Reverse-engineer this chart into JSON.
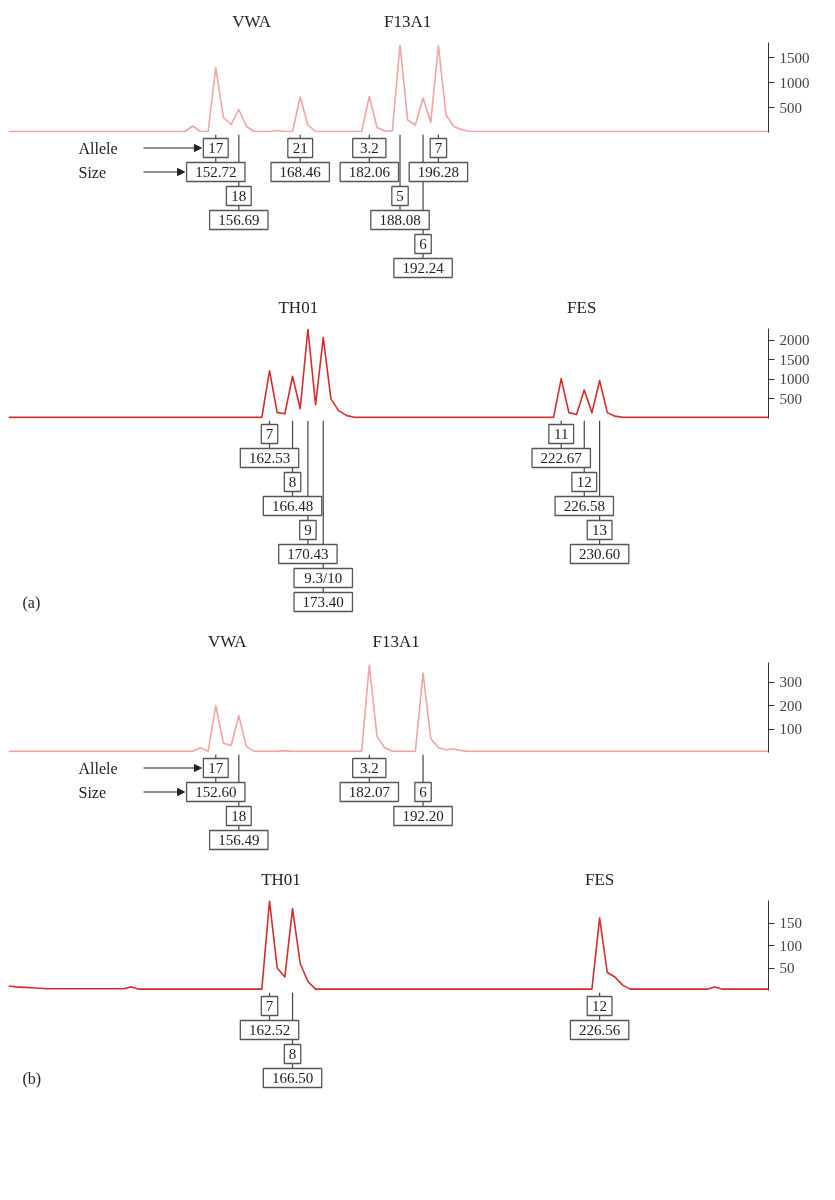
{
  "chart_data": [
    {
      "type": "line",
      "ylim": [
        0,
        1800
      ],
      "yticks": [
        500,
        1000,
        1500
      ],
      "tick_labels": "y",
      "categories": [
        null,
        null,
        null,
        null,
        null,
        null,
        null,
        null,
        null,
        null,
        null,
        null,
        null,
        null,
        null,
        null,
        null,
        null,
        null,
        null,
        null,
        null,
        null,
        null,
        null,
        null,
        null,
        null,
        null,
        null,
        null,
        null,
        null,
        null,
        null,
        null,
        null,
        null,
        null,
        null,
        null,
        null,
        null,
        null,
        null,
        null,
        null,
        null,
        null,
        null,
        null,
        null,
        null,
        null,
        null,
        null,
        null,
        null,
        null,
        null,
        null,
        null,
        null,
        null,
        null,
        null,
        null,
        null,
        null,
        null,
        null,
        null,
        null,
        null,
        null,
        null,
        null,
        null,
        null,
        null,
        null,
        null,
        null,
        null,
        null,
        null,
        null,
        null,
        null,
        null,
        null,
        null,
        null,
        null,
        null,
        null,
        null,
        null,
        null,
        null
      ],
      "series": [
        {
          "color": "#f2a3a3",
          "values": [
            20,
            20,
            20,
            20,
            20,
            20,
            20,
            20,
            20,
            20,
            20,
            20,
            20,
            20,
            20,
            20,
            20,
            20,
            20,
            20,
            20,
            20,
            20,
            20,
            130,
            20,
            20,
            1300,
            300,
            160,
            460,
            120,
            20,
            20,
            20,
            40,
            20,
            20,
            710,
            150,
            20,
            20,
            20,
            20,
            20,
            20,
            20,
            720,
            100,
            30,
            30,
            1750,
            250,
            150,
            690,
            200,
            1730,
            350,
            120,
            60,
            20,
            20,
            20,
            20,
            20,
            20,
            20,
            20,
            20,
            20,
            20,
            20,
            20,
            20,
            20,
            20,
            20,
            20,
            20,
            20,
            20,
            20,
            20,
            20,
            20,
            20,
            20,
            20,
            20,
            20,
            20,
            20,
            20,
            20,
            20,
            20,
            20,
            20,
            20,
            20
          ]
        }
      ],
      "annotations": [
        "VWA",
        "F13A1",
        "Allele",
        "Size",
        "17",
        "152.72",
        "18",
        "156.69",
        "21",
        "168.46",
        "3.2",
        "182.06",
        "5",
        "188.08",
        "6",
        "192.24",
        "7",
        "196.28"
      ]
    },
    {
      "type": "line",
      "ylim": [
        0,
        2300
      ],
      "yticks": [
        500,
        1000,
        1500,
        2000
      ],
      "tick_labels": "y",
      "categories": [
        null,
        null,
        null,
        null,
        null,
        null,
        null,
        null,
        null,
        null,
        null,
        null,
        null,
        null,
        null,
        null,
        null,
        null,
        null,
        null,
        null,
        null,
        null,
        null,
        null,
        null,
        null,
        null,
        null,
        null,
        null,
        null,
        null,
        null,
        null,
        null,
        null,
        null,
        null,
        null,
        null,
        null,
        null,
        null,
        null,
        null,
        null,
        null,
        null,
        null,
        null,
        null,
        null,
        null,
        null,
        null,
        null,
        null,
        null,
        null,
        null,
        null,
        null,
        null,
        null,
        null,
        null,
        null,
        null,
        null,
        null,
        null,
        null,
        null,
        null,
        null,
        null,
        null,
        null,
        null,
        null,
        null,
        null,
        null,
        null,
        null,
        null,
        null,
        null,
        null,
        null,
        null,
        null,
        null,
        null,
        null,
        null,
        null,
        null,
        null
      ],
      "series": [
        {
          "color": "#d42c2c",
          "values": [
            30,
            30,
            30,
            30,
            30,
            30,
            30,
            30,
            30,
            30,
            30,
            30,
            30,
            30,
            30,
            30,
            30,
            30,
            30,
            30,
            30,
            30,
            30,
            30,
            30,
            30,
            30,
            30,
            30,
            30,
            30,
            30,
            30,
            30,
            1220,
            150,
            120,
            1080,
            250,
            2280,
            350,
            2070,
            500,
            200,
            80,
            30,
            30,
            30,
            30,
            30,
            30,
            30,
            30,
            30,
            30,
            30,
            30,
            30,
            30,
            30,
            30,
            30,
            30,
            30,
            30,
            30,
            30,
            30,
            30,
            30,
            30,
            30,
            1020,
            150,
            100,
            730,
            150,
            970,
            150,
            60,
            30,
            30,
            30,
            30,
            30,
            30,
            30,
            30,
            30,
            30,
            30,
            30,
            30,
            30,
            30,
            30,
            30,
            30,
            30,
            30
          ]
        }
      ],
      "xlabel": "(a)",
      "annotations": [
        "TH01",
        "FES",
        "7",
        "162.53",
        "8",
        "166.48",
        "9",
        "170.43",
        "9.3/10",
        "173.40",
        "11",
        "222.67",
        "12",
        "226.58",
        "13",
        "230.60"
      ]
    },
    {
      "type": "line",
      "ylim": [
        0,
        385
      ],
      "yticks": [
        100,
        200,
        300
      ],
      "tick_labels": "y",
      "categories": [
        null,
        null,
        null,
        null,
        null,
        null,
        null,
        null,
        null,
        null,
        null,
        null,
        null,
        null,
        null,
        null,
        null,
        null,
        null,
        null,
        null,
        null,
        null,
        null,
        null,
        null,
        null,
        null,
        null,
        null,
        null,
        null,
        null,
        null,
        null,
        null,
        null,
        null,
        null,
        null,
        null,
        null,
        null,
        null,
        null,
        null,
        null,
        null,
        null,
        null,
        null,
        null,
        null,
        null,
        null,
        null,
        null,
        null,
        null,
        null,
        null,
        null,
        null,
        null,
        null,
        null,
        null,
        null,
        null,
        null,
        null,
        null,
        null,
        null,
        null,
        null,
        null,
        null,
        null,
        null,
        null,
        null,
        null,
        null,
        null,
        null,
        null,
        null,
        null,
        null,
        null,
        null,
        null,
        null,
        null,
        null,
        null,
        null,
        null,
        null
      ],
      "series": [
        {
          "color": "#f2a3a3",
          "values": [
            5,
            5,
            5,
            5,
            5,
            5,
            5,
            5,
            5,
            5,
            5,
            5,
            5,
            5,
            5,
            5,
            5,
            5,
            5,
            5,
            5,
            5,
            5,
            5,
            5,
            20,
            5,
            201,
            40,
            30,
            157,
            25,
            5,
            5,
            5,
            5,
            8,
            5,
            5,
            5,
            5,
            5,
            5,
            5,
            5,
            5,
            5,
            373,
            70,
            20,
            5,
            5,
            5,
            5,
            340,
            60,
            20,
            12,
            15,
            8,
            5,
            5,
            5,
            5,
            5,
            5,
            5,
            5,
            5,
            5,
            5,
            5,
            5,
            5,
            5,
            5,
            5,
            5,
            5,
            5,
            5,
            5,
            5,
            5,
            5,
            5,
            5,
            5,
            5,
            5,
            5,
            5,
            5,
            5,
            5,
            5,
            5,
            5,
            5,
            5
          ]
        }
      ],
      "annotations": [
        "VWA",
        "F13A1",
        "Allele",
        "Size",
        "17",
        "152.60",
        "18",
        "156.49",
        "3.2",
        "182.07",
        "6",
        "192.20"
      ]
    },
    {
      "type": "line",
      "ylim": [
        0,
        200
      ],
      "yticks": [
        50,
        100,
        150
      ],
      "tick_labels": "y",
      "categories": [
        null,
        null,
        null,
        null,
        null,
        null,
        null,
        null,
        null,
        null,
        null,
        null,
        null,
        null,
        null,
        null,
        null,
        null,
        null,
        null,
        null,
        null,
        null,
        null,
        null,
        null,
        null,
        null,
        null,
        null,
        null,
        null,
        null,
        null,
        null,
        null,
        null,
        null,
        null,
        null,
        null,
        null,
        null,
        null,
        null,
        null,
        null,
        null,
        null,
        null,
        null,
        null,
        null,
        null,
        null,
        null,
        null,
        null,
        null,
        null,
        null,
        null,
        null,
        null,
        null,
        null,
        null,
        null,
        null,
        null,
        null,
        null,
        null,
        null,
        null,
        null,
        null,
        null,
        null,
        null,
        null,
        null,
        null,
        null,
        null,
        null,
        null,
        null,
        null,
        null,
        null,
        null,
        null,
        null,
        null,
        null,
        null,
        null,
        null,
        null
      ],
      "series": [
        {
          "color": "#d42c2c",
          "values": [
            10,
            8,
            7,
            6,
            5,
            4,
            4,
            4,
            4,
            4,
            4,
            4,
            4,
            4,
            4,
            4,
            8,
            3,
            3,
            3,
            3,
            3,
            3,
            3,
            3,
            3,
            3,
            3,
            3,
            3,
            3,
            3,
            3,
            3,
            199,
            50,
            30,
            182,
            60,
            20,
            3,
            3,
            3,
            3,
            3,
            3,
            3,
            3,
            3,
            3,
            3,
            3,
            3,
            3,
            3,
            3,
            3,
            3,
            3,
            3,
            3,
            3,
            3,
            3,
            3,
            3,
            3,
            3,
            3,
            3,
            3,
            3,
            3,
            3,
            3,
            3,
            3,
            161,
            40,
            30,
            12,
            3,
            3,
            3,
            3,
            3,
            3,
            3,
            3,
            3,
            3,
            3,
            8,
            3,
            3,
            3,
            3,
            3,
            3,
            3
          ]
        }
      ],
      "xlabel": "(b)",
      "annotations": [
        "TH01",
        "FES",
        "7",
        "162.52",
        "8",
        "166.50",
        "12",
        "226.56"
      ]
    }
  ]
}
